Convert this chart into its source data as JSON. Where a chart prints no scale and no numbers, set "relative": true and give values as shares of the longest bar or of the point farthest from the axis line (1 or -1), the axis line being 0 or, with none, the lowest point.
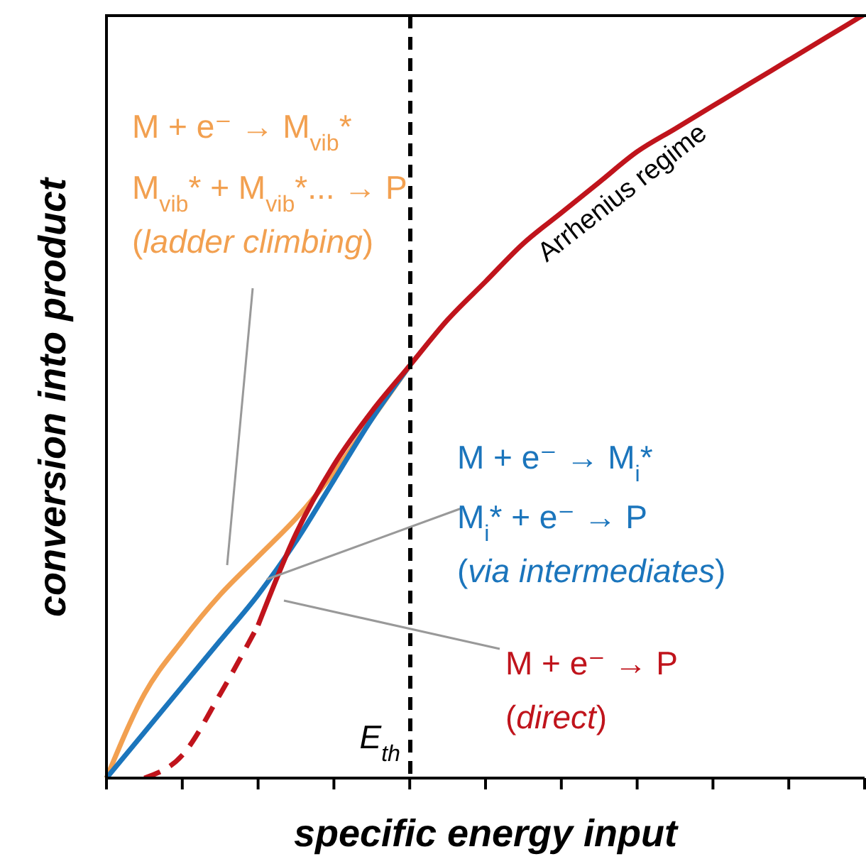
{
  "chart_data": {
    "type": "line",
    "relative": true,
    "xlabel": "specific energy input",
    "ylabel": "conversion into product",
    "marker": "none",
    "categories": [
      null,
      null,
      null,
      null,
      null,
      null,
      null,
      null,
      null,
      null,
      null,
      null,
      null,
      null,
      null,
      null,
      null,
      null,
      null,
      null,
      null
    ],
    "series": [
      {
        "color": "#f2a050",
        "line_style": "solid",
        "values": [
          0,
          0.11,
          0.18,
          0.24,
          0.29,
          0.34,
          0.4,
          0.47,
          0.54,
          null,
          null,
          null,
          null,
          null,
          null,
          null,
          null,
          null,
          null,
          null,
          null
        ]
      },
      {
        "color": "#1b75bc",
        "line_style": "solid",
        "values": [
          0,
          0.06,
          0.12,
          0.18,
          0.24,
          0.31,
          0.39,
          0.47,
          0.54,
          null,
          null,
          null,
          null,
          null,
          null,
          null,
          null,
          null,
          null,
          null,
          null
        ]
      },
      {
        "color": "#c0141c",
        "line_style": "dashed",
        "values": [
          null,
          0,
          0.03,
          0.11,
          0.2,
          null,
          null,
          null,
          null,
          null,
          null,
          null,
          null,
          null,
          null,
          null,
          null,
          null,
          null,
          null,
          null
        ]
      },
      {
        "color": "#c0141c",
        "line_style": "solid",
        "values": [
          null,
          null,
          null,
          null,
          0.2,
          0.32,
          0.41,
          0.48,
          0.54,
          0.6,
          0.65,
          0.7,
          0.74,
          0.78,
          0.82,
          0.85,
          0.88,
          0.91,
          0.94,
          0.97,
          1
        ]
      }
    ],
    "annotations": [
      "E$_{th}$",
      "M + e⁻ → M$_{vib}$*",
      "M$_{vib}$* + M$_{vib}$*... → P",
      "(ladder climbing)",
      "M + e⁻ → M$_{i}$*",
      "M$_{i}$* + e⁻ → P",
      "(via intermediates)",
      "M + e⁻ → P",
      "(direct)",
      "Arrhenius regime"
    ]
  }
}
